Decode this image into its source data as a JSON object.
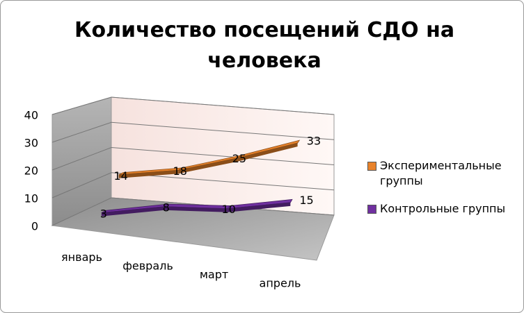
{
  "chart_data": {
    "type": "line3d",
    "title": "Количество посещений СДО на человека",
    "categories": [
      "январь",
      "февраль",
      "март",
      "апрель"
    ],
    "series": [
      {
        "name": "Экспериментальные группы",
        "color": "#e8822a",
        "values": [
          14,
          18,
          25,
          33
        ]
      },
      {
        "name": "Контрольные группы",
        "color": "#7030a0",
        "values": [
          3,
          8,
          10,
          15
        ]
      }
    ],
    "ylim": [
      0,
      40
    ],
    "yticks": [
      0,
      10,
      20,
      30,
      40
    ],
    "grid": true,
    "legend": "right"
  }
}
